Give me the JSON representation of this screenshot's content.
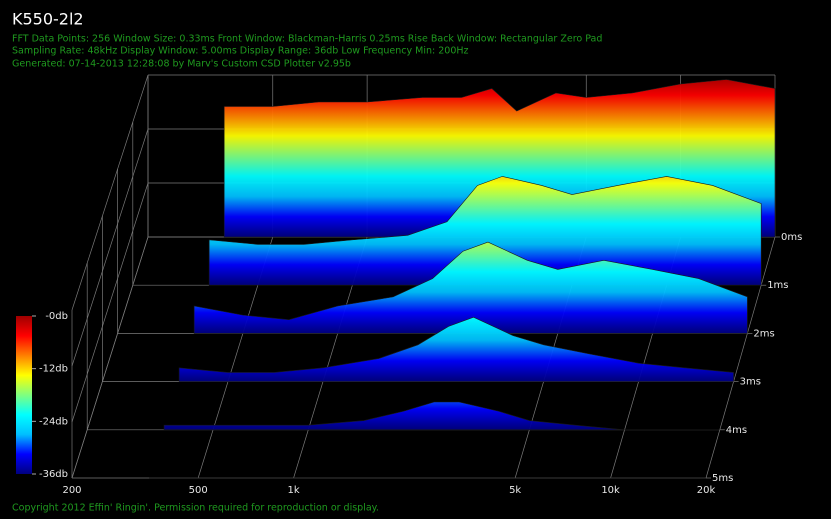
{
  "chart_data": {
    "type": "waterfall",
    "title": "K550-2l2",
    "subtitle_lines": [
      "FFT Data Points: 256   Window Size: 0.33ms    Front Window: Blackman-Harris 0.25ms Rise    Back Window: Rectangular Zero Pad",
      "Sampling Rate: 48kHz   Display Window: 5.00ms    Display Range: 36db   Low Frequency Min: 200Hz",
      "Generated: 07-14-2013 12:28:08 by Marv's Custom CSD Plotter v2.95b"
    ],
    "footer": "Copyright 2012 Effin' Ringin'. Permission required for reproduction or display.",
    "x": [
      350,
      500,
      700,
      1000,
      1500,
      2000,
      2500,
      3000,
      4000,
      5000,
      7000,
      10000,
      14000,
      20000
    ],
    "slices": [
      {
        "time": 0,
        "values": [
          -7,
          -7,
          -6,
          -6,
          -5,
          -5,
          -3,
          -8,
          -4,
          -5,
          -4,
          -2,
          -1,
          -3
        ]
      },
      {
        "time": 1,
        "values": [
          -26,
          -27,
          -27,
          -26,
          -25,
          -22,
          -14,
          -12,
          -14,
          -16,
          -14,
          -12,
          -14,
          -18
        ]
      },
      {
        "time": 2,
        "values": [
          -30,
          -32,
          -33,
          -30,
          -28,
          -24,
          -18,
          -16,
          -20,
          -22,
          -20,
          -22,
          -24,
          -28
        ]
      },
      {
        "time": 3,
        "values": [
          -33,
          -34,
          -34,
          -33,
          -31,
          -28,
          -24,
          -22,
          -26,
          -28,
          -30,
          -32,
          -33,
          -34
        ]
      },
      {
        "time": 4,
        "values": [
          -35,
          -35,
          -35,
          -35,
          -34,
          -32,
          -30,
          -30,
          -32,
          -34,
          -35,
          -36,
          -36,
          -36
        ]
      },
      {
        "time": 5,
        "values": [
          -36,
          -36,
          -36,
          -36,
          -36,
          -36,
          -36,
          -36,
          -36,
          -36,
          -36,
          -36,
          -36,
          -36
        ]
      }
    ],
    "xlim": [
      200,
      20000
    ],
    "xticks": [
      200,
      500,
      {
        "value": 1000,
        "label": "1k"
      },
      {
        "value": 5000,
        "label": "5k"
      },
      {
        "value": 10000,
        "label": "10k"
      },
      {
        "value": 20000,
        "label": "20k"
      }
    ],
    "xscale": "log",
    "zlim": [
      0,
      5
    ],
    "zticks": [
      {
        "value": 0,
        "label": "0ms"
      },
      {
        "value": 1,
        "label": "1ms"
      },
      {
        "value": 2,
        "label": "2ms"
      },
      {
        "value": 3,
        "label": "3ms"
      },
      {
        "value": 4,
        "label": "4ms"
      },
      {
        "value": 5,
        "label": "5ms"
      }
    ],
    "ylim": [
      -36,
      0
    ],
    "yticks": [
      {
        "value": 0,
        "label": "-0db"
      },
      {
        "value": -12,
        "label": "-12db"
      },
      {
        "value": -24,
        "label": "-24db"
      },
      {
        "value": -36,
        "label": "-36db"
      }
    ],
    "colormap": [
      "#00007f",
      "#0000ff",
      "#00bfff",
      "#00ffff",
      "#7fff7f",
      "#ffff00",
      "#ff7f00",
      "#ff0000",
      "#9f0000"
    ],
    "grid": true
  }
}
